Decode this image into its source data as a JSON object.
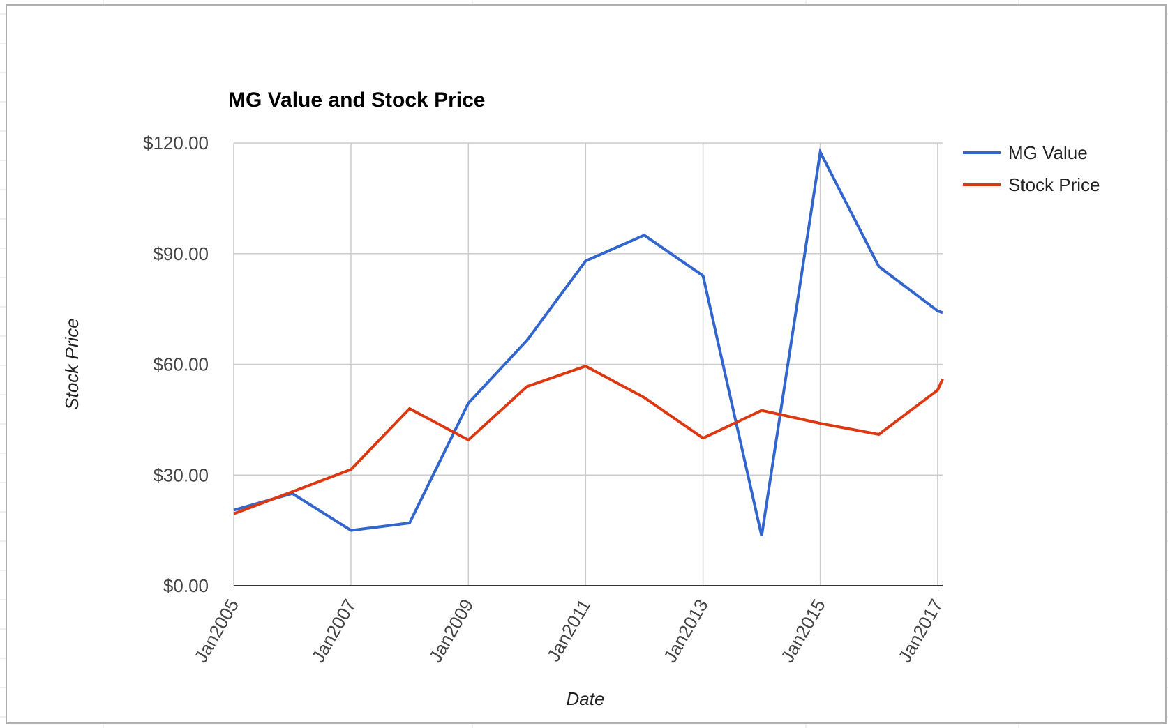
{
  "chart_data": {
    "type": "line",
    "title": "MG Value and Stock Price",
    "xlabel": "Date",
    "ylabel": "Stock Price",
    "x": [
      "2005-01",
      "2006-01",
      "2007-01",
      "2008-01",
      "2009-01",
      "2010-01",
      "2011-01",
      "2012-01",
      "2013-01",
      "2014-01",
      "2015-01",
      "2016-01",
      "2017-01",
      "2017-02"
    ],
    "x_tick_labels": [
      "Jan2005",
      "Jan2007",
      "Jan2009",
      "Jan2011",
      "Jan2013",
      "Jan2015",
      "Jan2017"
    ],
    "y_tick_labels": [
      "$0.00",
      "$30.00",
      "$60.00",
      "$90.00",
      "$120.00"
    ],
    "y_ticks": [
      0,
      30,
      60,
      90,
      120
    ],
    "ylim": [
      0,
      120
    ],
    "grid": true,
    "legend_position": "right",
    "series": [
      {
        "name": "MG Value",
        "color": "#3366cc",
        "values": [
          20.5,
          25.0,
          15.0,
          17.0,
          49.5,
          66.5,
          88.0,
          95.0,
          84.0,
          13.5,
          117.5,
          86.5,
          74.5,
          74.0
        ]
      },
      {
        "name": "Stock Price",
        "color": "#dc3912",
        "values": [
          19.5,
          25.5,
          31.5,
          48.0,
          39.5,
          54.0,
          59.5,
          51.0,
          40.0,
          47.5,
          44.0,
          41.0,
          53.0,
          56.0
        ]
      }
    ]
  }
}
